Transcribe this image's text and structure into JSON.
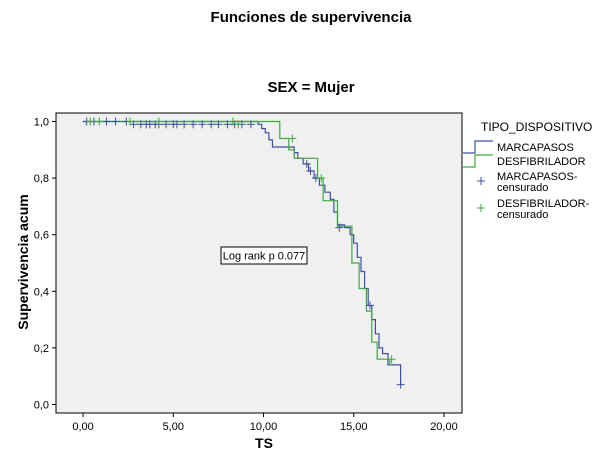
{
  "chart_data": {
    "type": "line",
    "title": "Funciones de supervivencia",
    "subtitle": "SEX = Mujer",
    "xlabel": "TS",
    "ylabel": "Supervivencia acum",
    "xlim": [
      -1.5,
      21.0
    ],
    "ylim": [
      -0.03,
      1.03
    ],
    "x_ticks": [
      0,
      5,
      10,
      15,
      20
    ],
    "x_tick_labels": [
      "0,00",
      "5,00",
      "10,00",
      "15,00",
      "20,00"
    ],
    "y_ticks": [
      0,
      0.2,
      0.4,
      0.6,
      0.8,
      1.0
    ],
    "y_tick_labels": [
      "0,0",
      "0,2",
      "0,4",
      "0,6",
      "0,8",
      "1,0"
    ],
    "grid": false,
    "plot_background": "#f0f0f0",
    "legend_position": "right",
    "legend_title": "TIPO_DISPOSITIVO",
    "legend_entries": [
      {
        "label": "MARCAPASOS",
        "kind": "line",
        "color": "#3f4fa0"
      },
      {
        "label": "DESFIBRILADOR",
        "kind": "line",
        "color": "#3fa83f"
      },
      {
        "label": "MARCAPASOS-\ncensurado",
        "kind": "cross",
        "color": "#3f4fa0"
      },
      {
        "label": "DESFIBRILADOR-\ncensurado",
        "kind": "cross",
        "color": "#3fa83f"
      }
    ],
    "annotation": "Log rank p 0.077",
    "series": [
      {
        "name": "MARCAPASOS",
        "color": "#3f4fa0",
        "steps": [
          [
            0,
            1.0
          ],
          [
            9.7,
            0.99
          ],
          [
            9.9,
            0.975
          ],
          [
            10.1,
            0.96
          ],
          [
            10.3,
            0.935
          ],
          [
            10.5,
            0.91
          ],
          [
            11.7,
            0.89
          ],
          [
            11.9,
            0.87
          ],
          [
            12.2,
            0.85
          ],
          [
            12.5,
            0.825
          ],
          [
            12.8,
            0.8
          ],
          [
            13.1,
            0.775
          ],
          [
            13.4,
            0.75
          ],
          [
            13.7,
            0.725
          ],
          [
            13.9,
            0.68
          ],
          [
            14.1,
            0.635
          ],
          [
            14.5,
            0.625
          ],
          [
            14.8,
            0.6
          ],
          [
            15.0,
            0.57
          ],
          [
            15.2,
            0.52
          ],
          [
            15.4,
            0.47
          ],
          [
            15.6,
            0.41
          ],
          [
            15.8,
            0.35
          ],
          [
            16.0,
            0.3
          ],
          [
            16.2,
            0.25
          ],
          [
            16.4,
            0.2
          ],
          [
            16.6,
            0.18
          ],
          [
            16.9,
            0.14
          ],
          [
            17.6,
            0.07
          ]
        ],
        "censored": [
          [
            0.2,
            1.0
          ],
          [
            0.6,
            1.0
          ],
          [
            1.3,
            1.0
          ],
          [
            1.8,
            1.0
          ],
          [
            2.4,
            1.0
          ],
          [
            2.8,
            0.99
          ],
          [
            3.2,
            0.99
          ],
          [
            3.5,
            0.99
          ],
          [
            3.7,
            0.99
          ],
          [
            4.0,
            0.99
          ],
          [
            4.2,
            0.99
          ],
          [
            4.6,
            0.99
          ],
          [
            5.0,
            0.99
          ],
          [
            5.2,
            0.99
          ],
          [
            5.6,
            0.99
          ],
          [
            6.1,
            0.99
          ],
          [
            6.6,
            0.99
          ],
          [
            7.1,
            0.99
          ],
          [
            7.5,
            0.99
          ],
          [
            8.0,
            0.99
          ],
          [
            8.4,
            0.99
          ],
          [
            8.8,
            0.99
          ],
          [
            9.3,
            0.99
          ],
          [
            12.4,
            0.85
          ],
          [
            12.6,
            0.825
          ],
          [
            12.9,
            0.8
          ],
          [
            14.2,
            0.625
          ],
          [
            15.9,
            0.35
          ],
          [
            17.6,
            0.07
          ]
        ]
      },
      {
        "name": "DESFIBRILADOR",
        "color": "#3fa83f",
        "steps": [
          [
            0,
            1.0
          ],
          [
            10.9,
            0.94
          ],
          [
            11.4,
            0.9
          ],
          [
            11.7,
            0.87
          ],
          [
            13.0,
            0.8
          ],
          [
            13.3,
            0.72
          ],
          [
            14.1,
            0.63
          ],
          [
            14.9,
            0.5
          ],
          [
            15.3,
            0.41
          ],
          [
            15.7,
            0.33
          ],
          [
            16.0,
            0.22
          ],
          [
            16.3,
            0.16
          ],
          [
            17.0,
            0.14
          ]
        ],
        "censored": [
          [
            0.4,
            1.0
          ],
          [
            0.9,
            1.0
          ],
          [
            2.6,
            1.0
          ],
          [
            4.2,
            1.0
          ],
          [
            8.3,
            1.0
          ],
          [
            8.6,
            0.99
          ],
          [
            11.6,
            0.94
          ],
          [
            13.2,
            0.8
          ],
          [
            17.1,
            0.16
          ]
        ]
      }
    ]
  }
}
